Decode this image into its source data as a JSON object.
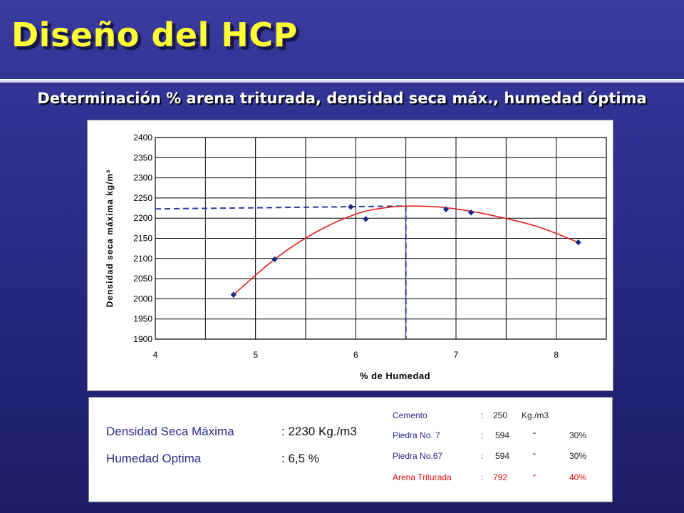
{
  "header": {
    "title": "Diseño del HCP",
    "subtitle": "Determinación % arena triturada, densidad seca máx., humedad óptima"
  },
  "chart_data": {
    "type": "scatter",
    "xlabel": "% de Humedad",
    "ylabel": "Densidad seca máxima kg/m³",
    "xlim": [
      4,
      8.5
    ],
    "ylim": [
      1900,
      2400
    ],
    "xticks": [
      4,
      5,
      6,
      7,
      8
    ],
    "yticks": [
      1900,
      1950,
      2000,
      2050,
      2100,
      2150,
      2200,
      2250,
      2300,
      2350,
      2400
    ],
    "grid": true,
    "points": [
      {
        "x": 4.78,
        "y": 2010
      },
      {
        "x": 5.19,
        "y": 2098
      },
      {
        "x": 5.95,
        "y": 2228
      },
      {
        "x": 6.1,
        "y": 2198
      },
      {
        "x": 6.9,
        "y": 2222
      },
      {
        "x": 7.15,
        "y": 2214
      },
      {
        "x": 8.22,
        "y": 2140
      }
    ],
    "fit_curve": [
      {
        "x": 4.78,
        "y": 2010
      },
      {
        "x": 5.2,
        "y": 2100
      },
      {
        "x": 5.6,
        "y": 2165
      },
      {
        "x": 6.0,
        "y": 2210
      },
      {
        "x": 6.3,
        "y": 2226
      },
      {
        "x": 6.55,
        "y": 2230
      },
      {
        "x": 6.9,
        "y": 2226
      },
      {
        "x": 7.3,
        "y": 2210
      },
      {
        "x": 7.8,
        "y": 2180
      },
      {
        "x": 8.22,
        "y": 2140
      }
    ],
    "optimum": {
      "x": 6.5,
      "y": 2230
    },
    "colors": {
      "points": "#1a2a8a",
      "curve": "#e02020",
      "guide": "#2a3aa0"
    }
  },
  "results": {
    "density_label": "Densidad Seca Máxima",
    "density_value": ": 2230 Kg./m3",
    "humidity_label": "Humedad Optima",
    "humidity_value": ": 6,5 %"
  },
  "mix": [
    {
      "name": "Cemento",
      "sep": ":",
      "qty": "250",
      "unit": "Kg./m3",
      "pct": ""
    },
    {
      "name": "Piedra No. 7",
      "sep": ":",
      "qty": "594",
      "unit": "“",
      "pct": "30%"
    },
    {
      "name": "Piedra No.67",
      "sep": ":",
      "qty": "594",
      "unit": "“",
      "pct": "30%"
    },
    {
      "name": "Arena Triturada",
      "sep": ":",
      "qty": "792",
      "unit": "“",
      "pct": "40%"
    }
  ]
}
